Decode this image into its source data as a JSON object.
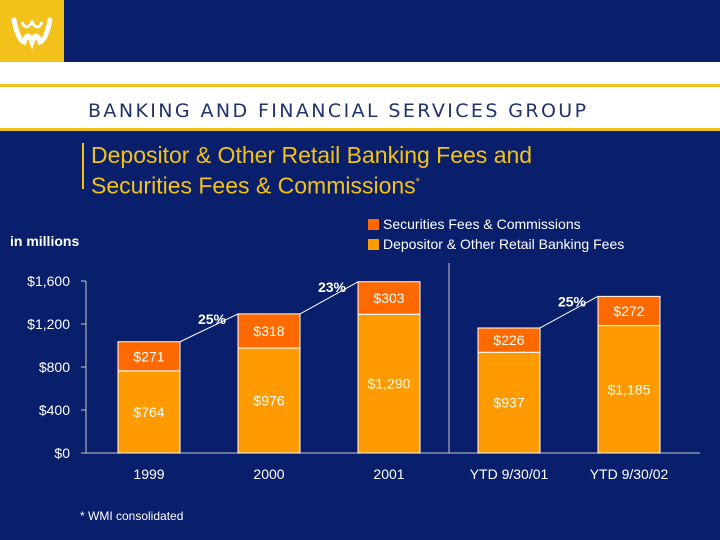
{
  "header": {
    "group_name": "BANKING AND FINANCIAL SERVICES GROUP",
    "title_line1": "Depositor & Other Retail Banking Fees and",
    "title_line2": "Securities Fees & Commissions",
    "title_mark": "*",
    "logo_icon": "wm-logo-icon"
  },
  "footnote": "* WMI consolidated",
  "colors": {
    "background": "#0a1f6b",
    "accent_gold": "#f2c21b",
    "depositor": "#ff9a00",
    "securities": "#ff6a00",
    "text": "#ffffff"
  },
  "chart_data": {
    "type": "bar",
    "stacked": true,
    "ylabel": "in millions",
    "categories": [
      "1999",
      "2000",
      "2001",
      "YTD 9/30/01",
      "YTD 9/30/02"
    ],
    "series": [
      {
        "name": "Depositor & Other Retail Banking Fees",
        "values": [
          764,
          976,
          1290,
          937,
          1185
        ],
        "labels": [
          "$764",
          "$976",
          "$1,290",
          "$937",
          "$1,185"
        ],
        "color": "#ff9a00"
      },
      {
        "name": "Securities Fees & Commissions",
        "values": [
          271,
          318,
          303,
          226,
          272
        ],
        "labels": [
          "$271",
          "$318",
          "$303",
          "$226",
          "$272"
        ],
        "color": "#ff6a00"
      }
    ],
    "legend_order": [
      "Securities Fees & Commissions",
      "Depositor & Other Retail Banking Fees"
    ],
    "legend_position": "top-right",
    "ylim": [
      0,
      1600
    ],
    "yticks": [
      0,
      400,
      800,
      1200,
      1600
    ],
    "ytick_labels": [
      "$0",
      "$400",
      "$800",
      "$1,200",
      "$1,600"
    ],
    "growth_annotations": [
      {
        "from": "1999",
        "to": "2000",
        "label": "25%"
      },
      {
        "from": "2000",
        "to": "2001",
        "label": "23%"
      },
      {
        "from": "YTD 9/30/01",
        "to": "YTD 9/30/02",
        "label": "25%"
      }
    ],
    "divider_between": [
      "2001",
      "YTD 9/30/01"
    ],
    "grid": false
  }
}
